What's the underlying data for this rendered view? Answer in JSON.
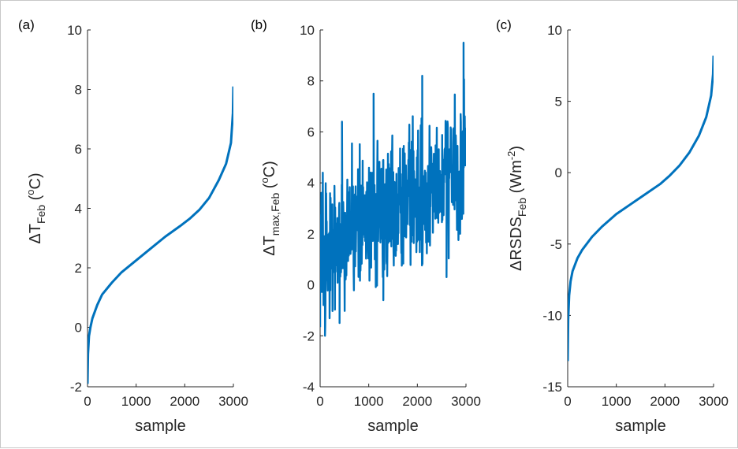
{
  "figure": {
    "panels": [
      {
        "label": "(a)",
        "ylabel": {
          "prefix": "ΔT",
          "sub": "Feb",
          "mid": " (",
          "sup": "o",
          "suffix": "C)"
        },
        "xlabel": "sample"
      },
      {
        "label": "(b)",
        "ylabel": {
          "prefix": "ΔT",
          "sub": "max,Feb",
          "mid": " (",
          "sup": "o",
          "suffix": "C)"
        },
        "xlabel": "sample"
      },
      {
        "label": "(c)",
        "ylabel": {
          "prefix": "ΔRSDS",
          "sub": "Feb",
          "mid": " (Wm",
          "sup": "-2",
          "suffix": ")"
        },
        "xlabel": "sample"
      }
    ]
  },
  "chart_data": [
    {
      "type": "line",
      "title": "",
      "xlabel": "sample",
      "ylabel": "ΔT_Feb (oC)",
      "xlim": [
        0,
        3000
      ],
      "ylim": [
        -2,
        10
      ],
      "xticks": [
        "0",
        "1000",
        "2000",
        "3000"
      ],
      "yticks": [
        "-2",
        "0",
        "2",
        "4",
        "6",
        "8",
        "10"
      ],
      "color": "#0072BD",
      "grid": false,
      "series": [
        {
          "x": [
            0,
            10,
            30,
            60,
            100,
            200,
            300,
            500,
            700,
            1000,
            1300,
            1600,
            1900,
            2100,
            2300,
            2500,
            2700,
            2850,
            2950,
            2990,
            3000
          ],
          "y": [
            -1.9,
            -0.9,
            -0.3,
            0.0,
            0.3,
            0.75,
            1.1,
            1.5,
            1.85,
            2.25,
            2.65,
            3.05,
            3.4,
            3.65,
            3.95,
            4.35,
            4.95,
            5.5,
            6.2,
            7.2,
            8.1
          ]
        }
      ]
    },
    {
      "type": "line",
      "title": "",
      "xlabel": "sample",
      "ylabel": "ΔT_max,Feb (oC)",
      "xlim": [
        0,
        3000
      ],
      "ylim": [
        -4,
        10
      ],
      "xticks": [
        "0",
        "1000",
        "2000",
        "3000"
      ],
      "yticks": [
        "-4",
        "-2",
        "0",
        "2",
        "4",
        "6",
        "8",
        "10"
      ],
      "color": "#0072BD",
      "grid": false,
      "series": [
        {
          "trend": {
            "start": 1.2,
            "end": 4.8
          },
          "spread": {
            "low": -3.2,
            "high": 4.3
          },
          "points": 600,
          "peak_examples": [
            {
              "x": 450,
              "y": 6.4
            },
            {
              "x": 1100,
              "y": 7.5
            },
            {
              "x": 2100,
              "y": 8.2
            },
            {
              "x": 2950,
              "y": 9.5
            }
          ],
          "trough_examples": [
            {
              "x": 100,
              "y": -2.0
            },
            {
              "x": 400,
              "y": -1.5
            },
            {
              "x": 1300,
              "y": -0.6
            },
            {
              "x": 2600,
              "y": 0.3
            }
          ]
        }
      ]
    },
    {
      "type": "line",
      "title": "",
      "xlabel": "sample",
      "ylabel": "ΔRSDS_Feb (Wm-2)",
      "xlim": [
        0,
        3000
      ],
      "ylim": [
        -15,
        10
      ],
      "xticks": [
        "0",
        "1000",
        "2000",
        "3000"
      ],
      "yticks": [
        "-15",
        "-10",
        "-5",
        "0",
        "5",
        "10"
      ],
      "color": "#0072BD",
      "grid": false,
      "series": [
        {
          "x": [
            0,
            10,
            30,
            60,
            100,
            200,
            300,
            500,
            700,
            1000,
            1300,
            1600,
            1900,
            2100,
            2300,
            2500,
            2700,
            2850,
            2950,
            2990,
            3000
          ],
          "y": [
            -13.2,
            -10.3,
            -8.6,
            -7.6,
            -6.9,
            -6.0,
            -5.4,
            -4.5,
            -3.8,
            -2.9,
            -2.2,
            -1.5,
            -0.8,
            -0.2,
            0.5,
            1.4,
            2.6,
            3.9,
            5.4,
            6.9,
            8.2
          ]
        }
      ]
    }
  ]
}
